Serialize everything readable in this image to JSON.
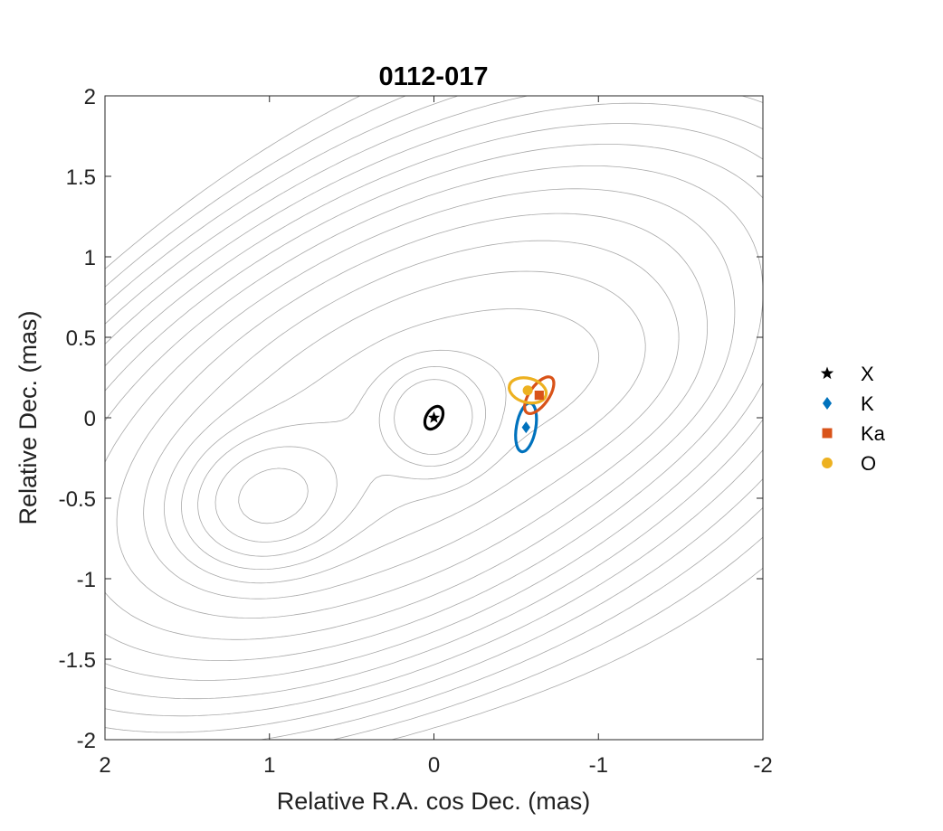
{
  "chart_data": {
    "type": "scatter",
    "title": "0112-017",
    "xlabel": "Relative R.A. cos Dec. (mas)",
    "ylabel": "Relative Dec. (mas)",
    "xlim": [
      2,
      -2
    ],
    "ylim": [
      -2,
      2
    ],
    "x_reversed": true,
    "xticks": [
      "2",
      "1",
      "0",
      "-1",
      "-2"
    ],
    "yticks": [
      "2",
      "1.5",
      "1",
      "0.5",
      "0",
      "-0.5",
      "-1",
      "-1.5",
      "-2"
    ],
    "grid": false,
    "legend_position": "right",
    "background_contours": "gray intensity contours of source image",
    "series": [
      {
        "name": "X",
        "marker": "star",
        "color": "#000000",
        "x": 0.0,
        "y": 0.0,
        "ellipse": {
          "a": 0.075,
          "b": 0.048,
          "angle_deg": 60
        }
      },
      {
        "name": "K",
        "marker": "diamond",
        "color": "#0072BD",
        "x": -0.56,
        "y": -0.06,
        "ellipse": {
          "a": 0.15,
          "b": 0.06,
          "angle_deg": 80
        }
      },
      {
        "name": "Ka",
        "marker": "square",
        "color": "#D95319",
        "x": -0.64,
        "y": 0.14,
        "ellipse": {
          "a": 0.13,
          "b": 0.06,
          "angle_deg": 55
        }
      },
      {
        "name": "O",
        "marker": "circle",
        "color": "#EDB120",
        "x": -0.57,
        "y": 0.17,
        "ellipse": {
          "a": 0.115,
          "b": 0.075,
          "angle_deg": -15
        }
      }
    ]
  }
}
